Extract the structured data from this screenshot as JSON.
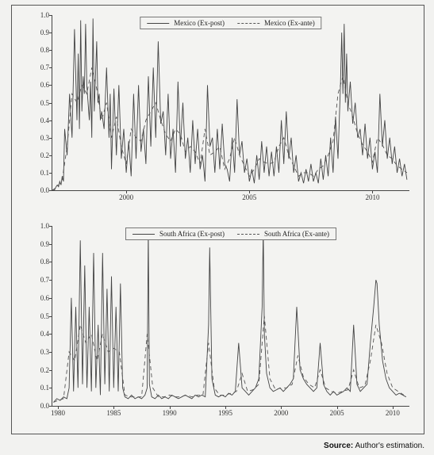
{
  "figure": {
    "background_color": "#f2f2f0",
    "frame_border_color": "#555555",
    "axis_color": "#444444",
    "tick_fontsize": 9,
    "tick_color": "#333333",
    "legend_border_color": "#777777",
    "legend_fontsize": 9
  },
  "source_line": {
    "label": "Source:",
    "text": " Author's estimation.",
    "fontsize": 10
  },
  "top_panel": {
    "type": "line",
    "legend": {
      "items": [
        {
          "label": "Mexico (Ex-post)",
          "style": "solid",
          "color": "#444444"
        },
        {
          "label": "Mexico (Ex-ante)",
          "style": "dashed",
          "color": "#555555"
        }
      ]
    },
    "ylim": [
      0.0,
      1.0
    ],
    "yticks": [
      0.0,
      0.1,
      0.2,
      0.3,
      0.4,
      0.5,
      0.6,
      0.7,
      0.8,
      0.9,
      1.0
    ],
    "ytick_labels": [
      "0.0",
      "0.1",
      "0.2",
      "0.3",
      "0.4",
      "0.5",
      "0.6",
      "0.7",
      "0.8",
      "0.9",
      "1.0"
    ],
    "xlim": [
      1997.0,
      2011.5
    ],
    "xticks": [
      2000,
      2005,
      2010
    ],
    "xtick_labels": [
      "2000",
      "2005",
      "2010"
    ],
    "line_width": 0.9,
    "series": [
      {
        "name": "mexico_expost",
        "color": "#444444",
        "dash": "none",
        "x": [
          1997.0,
          1997.08,
          1997.15,
          1997.2,
          1997.25,
          1997.3,
          1997.35,
          1997.4,
          1997.45,
          1997.5,
          1997.6,
          1997.7,
          1997.8,
          1997.9,
          1998.0,
          1998.05,
          1998.1,
          1998.15,
          1998.2,
          1998.25,
          1998.3,
          1998.35,
          1998.4,
          1998.5,
          1998.55,
          1998.6,
          1998.65,
          1998.7,
          1998.8,
          1998.85,
          1998.9,
          1998.95,
          1999.0,
          1999.1,
          1999.2,
          1999.3,
          1999.35,
          1999.4,
          1999.5,
          1999.6,
          1999.7,
          1999.8,
          1999.9,
          2000.0,
          2000.1,
          2000.2,
          2000.3,
          2000.4,
          2000.5,
          2000.6,
          2000.7,
          2000.8,
          2000.9,
          2001.0,
          2001.1,
          2001.2,
          2001.3,
          2001.4,
          2001.5,
          2001.6,
          2001.7,
          2001.8,
          2001.9,
          2002.0,
          2002.1,
          2002.2,
          2002.3,
          2002.4,
          2002.5,
          2002.6,
          2002.7,
          2002.8,
          2002.9,
          2003.0,
          2003.1,
          2003.2,
          2003.3,
          2003.4,
          2003.5,
          2003.6,
          2003.7,
          2003.8,
          2003.9,
          2004.0,
          2004.1,
          2004.2,
          2004.3,
          2004.4,
          2004.5,
          2004.6,
          2004.7,
          2004.8,
          2004.9,
          2005.0,
          2005.1,
          2005.2,
          2005.3,
          2005.4,
          2005.5,
          2005.6,
          2005.7,
          2005.8,
          2005.9,
          2006.0,
          2006.1,
          2006.2,
          2006.3,
          2006.4,
          2006.5,
          2006.6,
          2006.7,
          2006.8,
          2006.9,
          2007.0,
          2007.1,
          2007.2,
          2007.3,
          2007.4,
          2007.5,
          2007.6,
          2007.7,
          2007.8,
          2007.9,
          2008.0,
          2008.1,
          2008.2,
          2008.3,
          2008.4,
          2008.5,
          2008.6,
          2008.7,
          2008.75,
          2008.8,
          2008.85,
          2008.9,
          2008.95,
          2009.0,
          2009.1,
          2009.2,
          2009.3,
          2009.4,
          2009.5,
          2009.6,
          2009.7,
          2009.8,
          2009.9,
          2010.0,
          2010.1,
          2010.2,
          2010.3,
          2010.4,
          2010.5,
          2010.6,
          2010.7,
          2010.8,
          2010.9,
          2011.0,
          2011.1,
          2011.2,
          2011.3,
          2011.4
        ],
        "y": [
          0.0,
          0.0,
          0.02,
          0.03,
          0.02,
          0.05,
          0.03,
          0.08,
          0.05,
          0.35,
          0.2,
          0.55,
          0.3,
          0.92,
          0.4,
          0.78,
          0.35,
          0.97,
          0.45,
          0.65,
          0.55,
          0.95,
          0.6,
          0.4,
          0.62,
          0.3,
          0.98,
          0.45,
          0.85,
          0.5,
          0.55,
          0.4,
          0.45,
          0.35,
          0.7,
          0.3,
          0.55,
          0.12,
          0.58,
          0.2,
          0.6,
          0.18,
          0.35,
          0.1,
          0.28,
          0.08,
          0.55,
          0.18,
          0.6,
          0.22,
          0.35,
          0.15,
          0.65,
          0.25,
          0.7,
          0.3,
          0.85,
          0.38,
          0.45,
          0.2,
          0.55,
          0.18,
          0.35,
          0.1,
          0.62,
          0.25,
          0.5,
          0.18,
          0.3,
          0.1,
          0.4,
          0.15,
          0.35,
          0.12,
          0.2,
          0.05,
          0.6,
          0.25,
          0.3,
          0.1,
          0.35,
          0.12,
          0.38,
          0.15,
          0.12,
          0.05,
          0.3,
          0.1,
          0.52,
          0.2,
          0.28,
          0.1,
          0.18,
          0.05,
          0.12,
          0.04,
          0.2,
          0.06,
          0.28,
          0.1,
          0.25,
          0.08,
          0.22,
          0.08,
          0.25,
          0.1,
          0.4,
          0.15,
          0.45,
          0.18,
          0.3,
          0.1,
          0.2,
          0.05,
          0.1,
          0.04,
          0.12,
          0.05,
          0.15,
          0.05,
          0.1,
          0.04,
          0.18,
          0.06,
          0.2,
          0.08,
          0.3,
          0.1,
          0.42,
          0.18,
          0.6,
          0.9,
          0.55,
          0.95,
          0.5,
          0.78,
          0.45,
          0.62,
          0.38,
          0.5,
          0.3,
          0.35,
          0.2,
          0.38,
          0.18,
          0.3,
          0.12,
          0.22,
          0.1,
          0.55,
          0.25,
          0.4,
          0.18,
          0.3,
          0.15,
          0.25,
          0.1,
          0.18,
          0.08,
          0.15,
          0.06
        ]
      },
      {
        "name": "mexico_exante",
        "color": "#555555",
        "dash": "5,4",
        "x": [
          1997.0,
          1997.2,
          1997.4,
          1997.6,
          1997.8,
          1998.0,
          1998.2,
          1998.4,
          1998.6,
          1998.8,
          1999.0,
          1999.2,
          1999.4,
          1999.6,
          1999.8,
          2000.0,
          2000.2,
          2000.4,
          2000.6,
          2000.8,
          2001.0,
          2001.2,
          2001.4,
          2001.6,
          2001.8,
          2002.0,
          2002.2,
          2002.4,
          2002.6,
          2002.8,
          2003.0,
          2003.2,
          2003.4,
          2003.6,
          2003.8,
          2004.0,
          2004.2,
          2004.4,
          2004.6,
          2004.8,
          2005.0,
          2005.2,
          2005.4,
          2005.6,
          2005.8,
          2006.0,
          2006.2,
          2006.4,
          2006.6,
          2006.8,
          2007.0,
          2007.2,
          2007.4,
          2007.6,
          2007.8,
          2008.0,
          2008.2,
          2008.4,
          2008.6,
          2008.8,
          2009.0,
          2009.2,
          2009.4,
          2009.6,
          2009.8,
          2010.0,
          2010.2,
          2010.4,
          2010.6,
          2010.8,
          2011.0,
          2011.2,
          2011.4
        ],
        "y": [
          0.0,
          0.02,
          0.06,
          0.25,
          0.55,
          0.5,
          0.6,
          0.55,
          0.7,
          0.58,
          0.4,
          0.5,
          0.3,
          0.42,
          0.25,
          0.15,
          0.35,
          0.3,
          0.28,
          0.4,
          0.45,
          0.5,
          0.4,
          0.32,
          0.28,
          0.35,
          0.32,
          0.22,
          0.25,
          0.22,
          0.15,
          0.35,
          0.2,
          0.22,
          0.25,
          0.12,
          0.18,
          0.3,
          0.2,
          0.14,
          0.08,
          0.12,
          0.18,
          0.16,
          0.15,
          0.16,
          0.25,
          0.3,
          0.2,
          0.14,
          0.08,
          0.1,
          0.1,
          0.08,
          0.12,
          0.14,
          0.2,
          0.28,
          0.55,
          0.65,
          0.5,
          0.42,
          0.32,
          0.26,
          0.22,
          0.16,
          0.3,
          0.26,
          0.2,
          0.18,
          0.14,
          0.12,
          0.1
        ]
      }
    ]
  },
  "bottom_panel": {
    "type": "line",
    "legend": {
      "items": [
        {
          "label": "South Africa (Ex-post)",
          "style": "solid",
          "color": "#444444"
        },
        {
          "label": "South Africa (Ex-ante)",
          "style": "dashed",
          "color": "#555555"
        }
      ]
    },
    "ylim": [
      0.0,
      1.0
    ],
    "yticks": [
      0.0,
      0.1,
      0.2,
      0.3,
      0.4,
      0.5,
      0.6,
      0.7,
      0.8,
      0.9,
      1.0
    ],
    "ytick_labels": [
      "0.0",
      "0.1",
      "0.2",
      "0.3",
      "0.4",
      "0.5",
      "0.6",
      "0.7",
      "0.8",
      "0.9",
      "1.0"
    ],
    "xlim": [
      1979.5,
      2011.5
    ],
    "xticks": [
      1980,
      1985,
      1990,
      1995,
      2000,
      2005,
      2010
    ],
    "xtick_labels": [
      "1980",
      "1985",
      "1990",
      "1995",
      "2000",
      "2005",
      "2010"
    ],
    "line_width": 0.9,
    "series": [
      {
        "name": "sa_expost",
        "color": "#444444",
        "dash": "none",
        "x": [
          1979.6,
          1979.9,
          1980.2,
          1980.5,
          1980.8,
          1981.0,
          1981.2,
          1981.4,
          1981.6,
          1981.8,
          1982.0,
          1982.2,
          1982.4,
          1982.6,
          1982.8,
          1983.0,
          1983.2,
          1983.4,
          1983.6,
          1983.8,
          1984.0,
          1984.2,
          1984.4,
          1984.6,
          1984.8,
          1985.0,
          1985.2,
          1985.4,
          1985.6,
          1985.8,
          1986.0,
          1986.3,
          1986.6,
          1986.9,
          1987.2,
          1987.5,
          1987.8,
          1988.0,
          1988.1,
          1988.2,
          1988.4,
          1988.7,
          1989.0,
          1989.3,
          1989.6,
          1989.9,
          1990.2,
          1990.5,
          1990.8,
          1991.1,
          1991.4,
          1991.7,
          1992.0,
          1992.3,
          1992.6,
          1992.9,
          1993.2,
          1993.5,
          1993.6,
          1993.8,
          1994.1,
          1994.4,
          1994.7,
          1995.0,
          1995.3,
          1995.6,
          1995.9,
          1996.2,
          1996.5,
          1996.8,
          1997.1,
          1997.4,
          1997.7,
          1998.0,
          1998.3,
          1998.4,
          1998.5,
          1998.7,
          1999.0,
          1999.3,
          1999.6,
          1999.9,
          2000.2,
          2000.5,
          2000.8,
          2001.1,
          2001.4,
          2001.7,
          2002.0,
          2002.3,
          2002.6,
          2002.9,
          2003.2,
          2003.5,
          2003.8,
          2004.1,
          2004.4,
          2004.7,
          2005.0,
          2005.3,
          2005.6,
          2005.9,
          2006.2,
          2006.5,
          2006.8,
          2007.1,
          2007.4,
          2007.7,
          2008.0,
          2008.3,
          2008.5,
          2008.6,
          2008.8,
          2009.1,
          2009.4,
          2009.7,
          2010.0,
          2010.3,
          2010.6,
          2010.9,
          2011.2
        ],
        "y": [
          0.02,
          0.04,
          0.03,
          0.05,
          0.04,
          0.1,
          0.6,
          0.08,
          0.55,
          0.1,
          0.92,
          0.12,
          0.78,
          0.1,
          0.55,
          0.08,
          0.85,
          0.1,
          0.45,
          0.06,
          0.85,
          0.12,
          0.65,
          0.08,
          0.72,
          0.1,
          0.55,
          0.08,
          0.68,
          0.1,
          0.05,
          0.04,
          0.06,
          0.04,
          0.05,
          0.04,
          0.06,
          0.1,
          0.98,
          0.12,
          0.05,
          0.04,
          0.06,
          0.04,
          0.05,
          0.04,
          0.06,
          0.05,
          0.04,
          0.05,
          0.06,
          0.05,
          0.04,
          0.06,
          0.05,
          0.06,
          0.05,
          0.45,
          0.88,
          0.15,
          0.06,
          0.05,
          0.06,
          0.05,
          0.07,
          0.06,
          0.08,
          0.35,
          0.1,
          0.08,
          0.06,
          0.08,
          0.1,
          0.15,
          0.55,
          0.98,
          0.4,
          0.18,
          0.1,
          0.08,
          0.09,
          0.1,
          0.08,
          0.1,
          0.12,
          0.15,
          0.55,
          0.2,
          0.15,
          0.12,
          0.1,
          0.08,
          0.1,
          0.35,
          0.12,
          0.08,
          0.06,
          0.08,
          0.06,
          0.07,
          0.08,
          0.1,
          0.08,
          0.45,
          0.12,
          0.08,
          0.1,
          0.12,
          0.35,
          0.55,
          0.7,
          0.68,
          0.45,
          0.25,
          0.15,
          0.1,
          0.08,
          0.06,
          0.07,
          0.06,
          0.05
        ]
      },
      {
        "name": "sa_exante",
        "color": "#555555",
        "dash": "5,4",
        "x": [
          1979.6,
          1980.0,
          1980.5,
          1981.0,
          1981.5,
          1982.0,
          1982.5,
          1983.0,
          1983.5,
          1984.0,
          1984.5,
          1985.0,
          1985.5,
          1986.0,
          1986.5,
          1987.0,
          1987.5,
          1988.0,
          1988.5,
          1989.0,
          1989.5,
          1990.0,
          1990.5,
          1991.0,
          1991.5,
          1992.0,
          1992.5,
          1993.0,
          1993.5,
          1994.0,
          1994.5,
          1995.0,
          1995.5,
          1996.0,
          1996.5,
          1997.0,
          1997.5,
          1998.0,
          1998.5,
          1999.0,
          1999.5,
          2000.0,
          2000.5,
          2001.0,
          2001.5,
          2002.0,
          2002.5,
          2003.0,
          2003.5,
          2004.0,
          2004.5,
          2005.0,
          2005.5,
          2006.0,
          2006.5,
          2007.0,
          2007.5,
          2008.0,
          2008.5,
          2009.0,
          2009.5,
          2010.0,
          2010.5,
          2011.0
        ],
        "y": [
          0.02,
          0.03,
          0.04,
          0.3,
          0.25,
          0.45,
          0.35,
          0.4,
          0.25,
          0.4,
          0.3,
          0.32,
          0.3,
          0.06,
          0.05,
          0.05,
          0.05,
          0.4,
          0.1,
          0.05,
          0.05,
          0.06,
          0.05,
          0.05,
          0.06,
          0.05,
          0.06,
          0.06,
          0.35,
          0.1,
          0.06,
          0.06,
          0.07,
          0.08,
          0.18,
          0.08,
          0.09,
          0.12,
          0.5,
          0.15,
          0.09,
          0.1,
          0.1,
          0.12,
          0.28,
          0.16,
          0.12,
          0.1,
          0.2,
          0.1,
          0.08,
          0.07,
          0.08,
          0.09,
          0.2,
          0.1,
          0.11,
          0.25,
          0.45,
          0.35,
          0.18,
          0.1,
          0.08,
          0.06
        ]
      }
    ]
  }
}
